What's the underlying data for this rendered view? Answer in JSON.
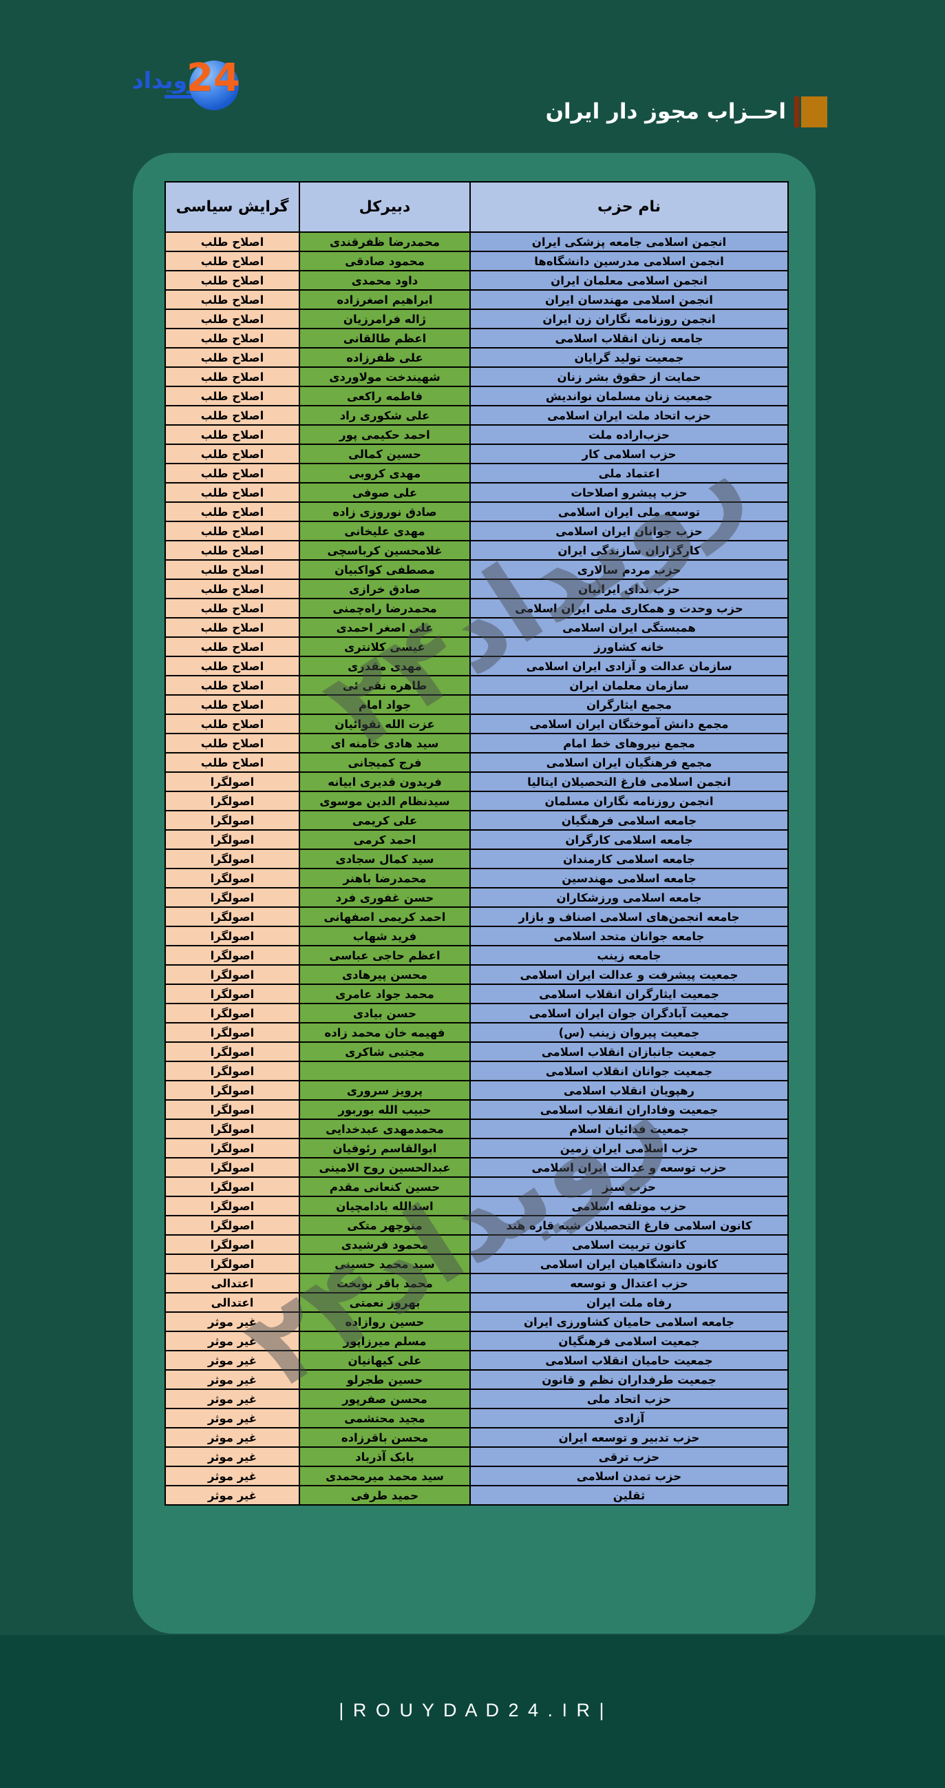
{
  "page": {
    "title": "احــزاب مجوز دار ایران",
    "watermark": "رویداد۲۴",
    "footer_url": "| R O U Y D A D 2 4 . I R |"
  },
  "logo": {
    "wordmark_fa": "رویداد",
    "number": "24"
  },
  "colors": {
    "page_bg": "#175144",
    "footer_bg": "#0C463A",
    "panel_bg": "#2D7F69",
    "header_cell_bg": "#B4C6E7",
    "name_cell_bg": "#8FAADC",
    "secretary_cell_bg": "#6FAC43",
    "orientation_cell_bg": "#F8CFAF",
    "title_square": "#B9770E",
    "title_bar": "#8C2C07",
    "watermark_color": "rgba(70,75,80,0.45)",
    "logo_blue": "#2058D8",
    "logo_orange": "#F2641C"
  },
  "table": {
    "headers": {
      "name": "نام حزب",
      "secretary": "دبیرکل",
      "orientation": "گرایش سیاسی"
    },
    "rows": [
      {
        "name": "انجمن اسلامی جامعه پزشکی ایران",
        "secretary": "محمدرضا ظفرقندی",
        "orientation": "اصلاح طلب"
      },
      {
        "name": "انجمن اسلامی مدرسین دانشگاه‌ها",
        "secretary": "محمود صادقی",
        "orientation": "اصلاح طلب"
      },
      {
        "name": "انجمن اسلامی معلمان ایران",
        "secretary": "داود محمدی",
        "orientation": "اصلاح طلب"
      },
      {
        "name": "انجمن اسلامی مهندسان ایران",
        "secretary": "ابراهیم اصغرزاده",
        "orientation": "اصلاح طلب"
      },
      {
        "name": "انجمن روزنامه نگاران زن ایران",
        "secretary": "ژاله فرامرزیان",
        "orientation": "اصلاح طلب"
      },
      {
        "name": "جامعه زنان انقلاب اسلامی",
        "secretary": "اعظم طالقانی",
        "orientation": "اصلاح طلب"
      },
      {
        "name": "جمعیت تولید گرایان",
        "secretary": "علی ظفرزاده",
        "orientation": "اصلاح طلب"
      },
      {
        "name": "حمایت از حقوق بشر زنان",
        "secretary": "شهیندخت مولاوردی",
        "orientation": "اصلاح طلب"
      },
      {
        "name": "جمعیت زنان مسلمان نواندیش",
        "secretary": "فاطمه راکعی",
        "orientation": "اصلاح طلب"
      },
      {
        "name": "حزب اتحاد ملت ایران اسلامی",
        "secretary": "علی شکوری راد",
        "orientation": "اصلاح طلب"
      },
      {
        "name": "حزب‌اراده ملت",
        "secretary": "احمد حکیمی پور",
        "orientation": "اصلاح طلب"
      },
      {
        "name": "حزب اسلامی کار",
        "secretary": "حسین کمالی",
        "orientation": "اصلاح طلب"
      },
      {
        "name": "اعتماد ملی",
        "secretary": "مهدی کروبی",
        "orientation": "اصلاح طلب"
      },
      {
        "name": "حزب پیشرو اصلاحات",
        "secretary": "علی صوفی",
        "orientation": "اصلاح طلب"
      },
      {
        "name": "توسعه ملی ایران اسلامی",
        "secretary": "صادق نوروزی زاده",
        "orientation": "اصلاح طلب"
      },
      {
        "name": "حزب جوانان ایران اسلامی",
        "secretary": "مهدی علیخانی",
        "orientation": "اصلاح طلب"
      },
      {
        "name": "کارگزاران سازندگی ایران",
        "secretary": "غلامحسین کرباسچی",
        "orientation": "اصلاح طلب"
      },
      {
        "name": "حزب مردم سالاری",
        "secretary": "مصطفی کواکبیان",
        "orientation": "اصلاح طلب"
      },
      {
        "name": "حزب ندای ایرانیان",
        "secretary": "صادق خرازی",
        "orientation": "اصلاح طلب"
      },
      {
        "name": "حزب وحدت و همکاری ملی ایران اسلامی",
        "secretary": "محمدرضا راه‌چمنی",
        "orientation": "اصلاح طلب"
      },
      {
        "name": "همبستگی ایران اسلامی",
        "secretary": "علی اصغر احمدی",
        "orientation": "اصلاح طلب"
      },
      {
        "name": "خانه کشاورز",
        "secretary": "عیسی کلانتری",
        "orientation": "اصلاح طلب"
      },
      {
        "name": "سازمان عدالت و آزادی ایران اسلامی",
        "secretary": "مهدی مقدری",
        "orientation": "اصلاح طلب"
      },
      {
        "name": "سازمان معلمان ایران",
        "secretary": "طاهره نقی ئی",
        "orientation": "اصلاح طلب"
      },
      {
        "name": "مجمع ایثارگران",
        "secretary": "جواد امام",
        "orientation": "اصلاح طلب"
      },
      {
        "name": "مجمع دانش آموختگان ایران اسلامی",
        "secretary": "عزت الله تقوائیان",
        "orientation": "اصلاح طلب"
      },
      {
        "name": "مجمع نیروهای خط امام",
        "secretary": "سید هادی خامنه ای",
        "orientation": "اصلاح طلب"
      },
      {
        "name": "مجمع فرهنگیان ایران اسلامی",
        "secretary": "فرج کمیجانی",
        "orientation": "اصلاح طلب"
      },
      {
        "name": "انجمن اسلامی فارغ التحصیلان ایتالیا",
        "secretary": "فریدون قدیری ابیانه",
        "orientation": "اصولگرا"
      },
      {
        "name": "انجمن روزنامه نگاران مسلمان",
        "secretary": "سیدنظام الدین موسوی",
        "orientation": "اصولگرا"
      },
      {
        "name": "جامعه اسلامی فرهنگیان",
        "secretary": "علی کریمی",
        "orientation": "اصولگرا"
      },
      {
        "name": "جامعه اسلامی کارگران",
        "secretary": "احمد کرمی",
        "orientation": "اصولگرا"
      },
      {
        "name": "جامعه اسلامی کارمندان",
        "secretary": "سید کمال سجادی",
        "orientation": "اصولگرا"
      },
      {
        "name": "جامعه اسلامی مهندسین",
        "secretary": "محمدرضا باهنر",
        "orientation": "اصولگرا"
      },
      {
        "name": "جامعه اسلامی ورزشکاران",
        "secretary": "حسن غفوری فرد",
        "orientation": "اصولگرا"
      },
      {
        "name": "جامعه انجمن‌های اسلامی اصناف و بازار",
        "secretary": "احمد کریمی اصفهانی",
        "orientation": "اصولگرا"
      },
      {
        "name": "جامعه جوانان متحد اسلامی",
        "secretary": "فرید شهاب",
        "orientation": "اصولگرا"
      },
      {
        "name": "جامعه زینب",
        "secretary": "اعظم حاجی عباسی",
        "orientation": "اصولگرا"
      },
      {
        "name": "جمعیت پیشرفت و عدالت ایران اسلامی",
        "secretary": "محسن پیرهادی",
        "orientation": "اصولگرا"
      },
      {
        "name": "جمعیت ایثارگران انقلاب اسلامی",
        "secretary": "محمد جواد عامری",
        "orientation": "اصولگرا"
      },
      {
        "name": "جمعیت آبادگران جوان ایران اسلامی",
        "secretary": "حسن بیادی",
        "orientation": "اصولگرا"
      },
      {
        "name": "جمعیت پیروان زینب (س)",
        "secretary": "فهیمه خان محمد زاده",
        "orientation": "اصولگرا"
      },
      {
        "name": "جمعیت جانبازان انقلاب اسلامی",
        "secretary": "مجتبی شاکری",
        "orientation": "اصولگرا"
      },
      {
        "name": "جمعیت جوانان انقلاب اسلامی",
        "secretary": "",
        "orientation": "اصولگرا"
      },
      {
        "name": "رهپویان انقلاب اسلامی",
        "secretary": "پرویز سروری",
        "orientation": "اصولگرا"
      },
      {
        "name": "جمعیت وفاداران انقلاب اسلامی",
        "secretary": "حبیب الله بوربور",
        "orientation": "اصولگرا"
      },
      {
        "name": "جمعیت فدائیان اسلام",
        "secretary": "محمدمهدی عبدخدایی",
        "orientation": "اصولگرا"
      },
      {
        "name": "حزب اسلامی ایران زمین",
        "secretary": "ابوالقاسم رئوفیان",
        "orientation": "اصولگرا"
      },
      {
        "name": "حزب توسعه و عدالت ایران اسلامی",
        "secretary": "عبدالحسین روح الامینی",
        "orientation": "اصولگرا"
      },
      {
        "name": "حزب سبز",
        "secretary": "حسین کنعانی مقدم",
        "orientation": "اصولگرا"
      },
      {
        "name": "حزب موتلفه اسلامی",
        "secretary": "اسدالله بادامچیان",
        "orientation": "اصولگرا"
      },
      {
        "name": "کانون اسلامی فارغ التحصیلان شبه قاره هند",
        "secretary": "منوچهر متکی",
        "orientation": "اصولگرا"
      },
      {
        "name": "کانون تربیت اسلامی",
        "secretary": "محمود فرشیدی",
        "orientation": "اصولگرا"
      },
      {
        "name": "کانون دانشگاهیان ایران اسلامی",
        "secretary": "سید محمد حسینی",
        "orientation": "اصولگرا"
      },
      {
        "name": "حزب اعتدال و توسعه",
        "secretary": "محمد باقر نوبخت",
        "orientation": "اعتدالی"
      },
      {
        "name": "رفاه ملت ایران",
        "secretary": "بهروز نعمتی",
        "orientation": "اعتدالی"
      },
      {
        "name": "جامعه اسلامی حامیان کشاورزی ایران",
        "secretary": "حسین روازاده",
        "orientation": "غیر موثر"
      },
      {
        "name": "جمعیت اسلامی فرهنگیان",
        "secretary": "مسلم میرزاپور",
        "orientation": "غیر موثر"
      },
      {
        "name": "جمعیت حامیان انقلاب اسلامی",
        "secretary": "علی کیهانیان",
        "orientation": "غیر موثر"
      },
      {
        "name": "جمعیت طرفداران نظم و قانون",
        "secretary": "حسین طجرلو",
        "orientation": "غیر موثر"
      },
      {
        "name": "حزب اتحاد ملی",
        "secretary": "محسن صفرپور",
        "orientation": "غیر موثر"
      },
      {
        "name": "آزادی",
        "secretary": "مجید محتشمی",
        "orientation": "غیر موثر"
      },
      {
        "name": "حزب تدبیر و توسعه ایران",
        "secretary": "محسن باقرزاده",
        "orientation": "غیر موثر"
      },
      {
        "name": "حزب ترقی",
        "secretary": "بابک آذرباد",
        "orientation": "غیر موثر"
      },
      {
        "name": "حزب تمدن اسلامی",
        "secretary": "سید محمد میرمحمدی",
        "orientation": "غیر موثر"
      },
      {
        "name": "ثقلین",
        "secretary": "حمید طرفی",
        "orientation": "غیر موثر"
      }
    ]
  }
}
